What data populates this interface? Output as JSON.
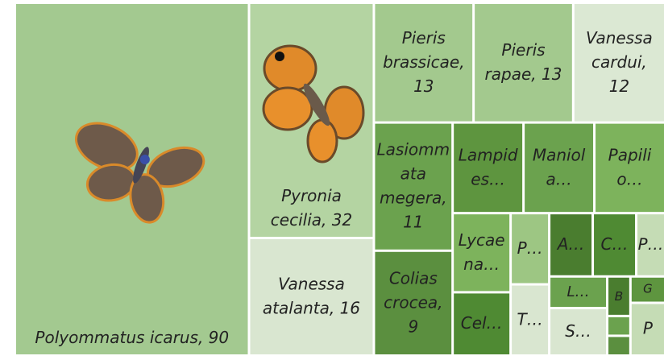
{
  "chart_data": {
    "type": "treemap",
    "categories": [
      "Polyommatus icarus, 90",
      "Pyronia cecilia, 32",
      "Vanessa atalanta, 16",
      "Pieris brassicae, 13",
      "Pieris rapae, 13",
      "Vanessa cardui, 12",
      "Lasiommata megera, 11",
      "Colias crocea, 9",
      "Lampides…",
      "Maniola…",
      "Papilio…",
      "Lycaena…",
      "Cel…",
      "P…",
      "T…",
      "A…",
      "C…",
      "P…",
      "L…",
      "S…",
      "B",
      null,
      null,
      "G",
      "P"
    ],
    "values": [
      90,
      32,
      16,
      13,
      13,
      12,
      11,
      9,
      7,
      7,
      7,
      5,
      4,
      3,
      3,
      3,
      3,
      2,
      2,
      3,
      1,
      0.5,
      0.5,
      1,
      2
    ],
    "colors": [
      "#a3c990",
      "#b4d4a2",
      "#d9e6d0",
      "#a3c98e",
      "#a3c98e",
      "#dbe8d3",
      "#6ba24e",
      "#5b8f3f",
      "#5e953f",
      "#6ba24e",
      "#7db35c",
      "#7db35c",
      "#4f8a33",
      "#9dc683",
      "#d9e6d0",
      "#4a7d2f",
      "#4f8a33",
      "#c5dcb5",
      "#6ba24e",
      "#d9e6d0",
      "#4a7d2f",
      "#6ba24e",
      "#5b8f3f",
      "#5e953f",
      "#c5dcb5"
    ]
  }
}
